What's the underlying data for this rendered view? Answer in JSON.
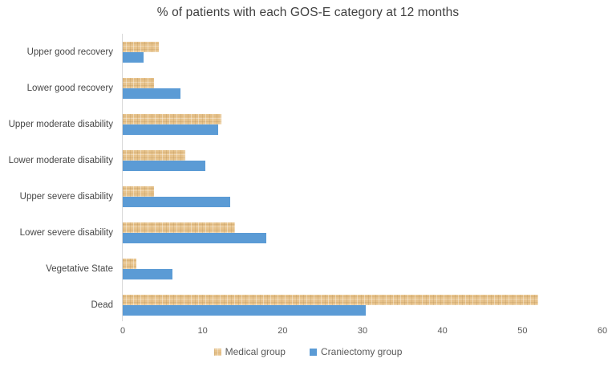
{
  "title": "% of patients with each GOS-E category at 12 months",
  "chart_data": {
    "type": "bar",
    "orientation": "horizontal",
    "title": "% of patients with each GOS-E category at 12 months",
    "xlabel": "",
    "ylabel": "",
    "categories": [
      "Upper good recovery",
      "Lower good recovery",
      "Upper moderate disability",
      "Lower moderate disability",
      "Upper severe disability",
      "Lower severe disability",
      "Vegetative State",
      "Dead"
    ],
    "series": [
      {
        "name": "Medical group",
        "color": "#e7c38c",
        "texture": "woven-tan",
        "values": [
          4.5,
          3.9,
          12.3,
          7.8,
          3.9,
          14.0,
          1.7,
          52.0
        ]
      },
      {
        "name": "Craniectomy group",
        "color": "#5b9bd5",
        "texture": "solid",
        "values": [
          2.6,
          7.2,
          11.9,
          10.3,
          13.4,
          18.0,
          6.2,
          30.4
        ]
      }
    ],
    "xlim": [
      0,
      60
    ],
    "x_ticks": [
      0,
      10,
      20,
      30,
      40,
      50,
      60
    ],
    "grid": false,
    "legend_position": "bottom",
    "axis_line_color": "#d9d9d9",
    "tick_label_color": "#595959",
    "category_label_color": "#474747",
    "title_color": "#404040",
    "background_color": "#ffffff"
  }
}
